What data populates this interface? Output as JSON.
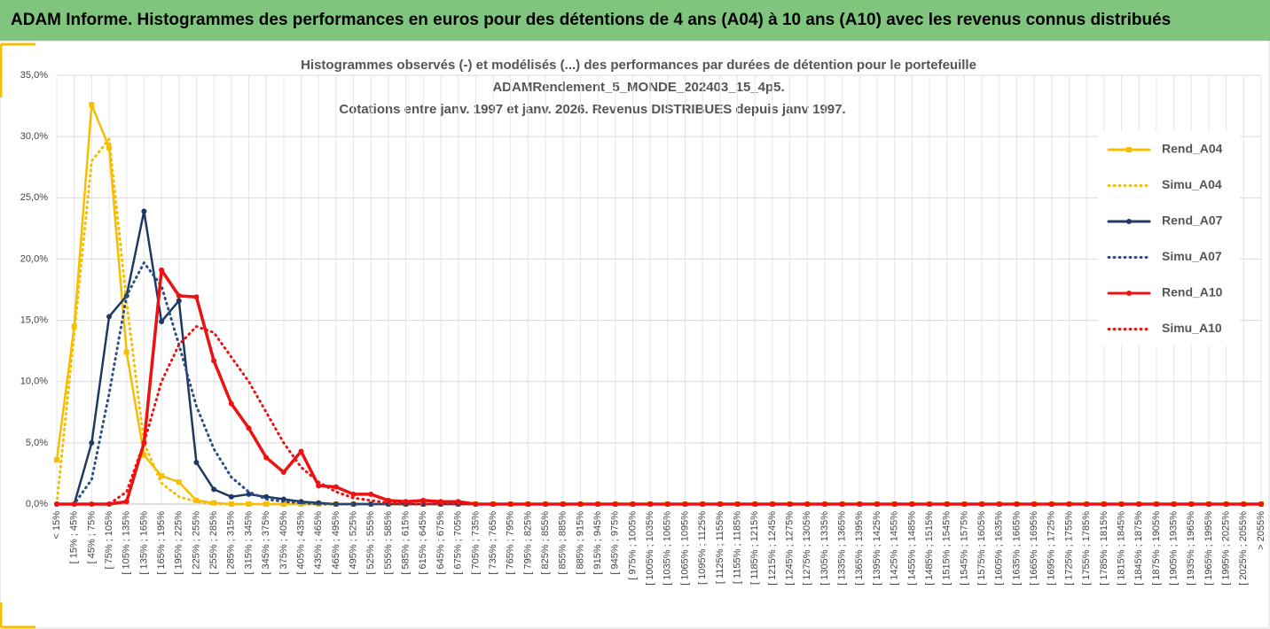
{
  "header": {
    "title": "ADAM Informe. Histogrammes des performances en euros pour des détentions de 4 ans (A04) à 10 ans (A10) avec les revenus connus distribués"
  },
  "chart_data": {
    "type": "line",
    "title": [
      "Histogrammes observés (-) et modélisés (...) des performances par durées de détention pour le portefeuille",
      "ADAMRendement_5_MONDE_202403_15_4p5.",
      "Cotations entre janv. 1997 et janv. 2026. Revenus DISTRIBUES depuis janv 1997."
    ],
    "categories": [
      "< 15%",
      "[ 15% ; 45%",
      "[ 45% ; 75%",
      "[ 75% ; 105%",
      "[ 105% ; 135%",
      "[ 135% ; 165%",
      "[ 165% ; 195%",
      "[ 195% ; 225%",
      "[ 225% ; 255%",
      "[ 255% ; 285%",
      "[ 285% ; 315%",
      "[ 315% ; 345%",
      "[ 345% ; 375%",
      "[ 375% ; 405%",
      "[ 405% ; 435%",
      "[ 435% ; 465%",
      "[ 465% ; 495%",
      "[ 495% ; 525%",
      "[ 525% ; 555%",
      "[ 555% ; 585%",
      "[ 585% ; 615%",
      "[ 615% ; 645%",
      "[ 645% ; 675%",
      "[ 675% ; 705%",
      "[ 705% ; 735%",
      "[ 735% ; 765%",
      "[ 765% ; 795%",
      "[ 795% ; 825%",
      "[ 825% ; 855%",
      "[ 855% ; 885%",
      "[ 885% ; 915%",
      "[ 915% ; 945%",
      "[ 945% ; 975%",
      "[ 975% ; 1005%",
      "[ 1005% ; 1035%",
      "[ 1035% ; 1065%",
      "[ 1065% ; 1095%",
      "[ 1095% ; 1125%",
      "[ 1125% ; 1155%",
      "[ 1155% ; 1185%",
      "[ 1185% ; 1215%",
      "[ 1215% ; 1245%",
      "[ 1245% ; 1275%",
      "[ 1275% ; 1305%",
      "[ 1305% ; 1335%",
      "[ 1335% ; 1365%",
      "[ 1365% ; 1395%",
      "[ 1395% ; 1425%",
      "[ 1425% ; 1455%",
      "[ 1455% ; 1485%",
      "[ 1485% ; 1515%",
      "[ 1515% ; 1545%",
      "[ 1545% ; 1575%",
      "[ 1575% ; 1605%",
      "[ 1605% ; 1635%",
      "[ 1635% ; 1665%",
      "[ 1665% ; 1695%",
      "[ 1695% ; 1725%",
      "[ 1725% ; 1755%",
      "[ 1755% ; 1785%",
      "[ 1785% ; 1815%",
      "[ 1815% ; 1845%",
      "[ 1845% ; 1875%",
      "[ 1875% ; 1905%",
      "[ 1905% ; 1935%",
      "[ 1935% ; 1965%",
      "[ 1965% ; 1995%",
      "[ 1995% ; 2025%",
      "[ 2025% ; 2055%",
      "> 2055%"
    ],
    "series": [
      {
        "name": "Rend_A04",
        "color": "#f5be00",
        "style": "solid",
        "marker": "square",
        "values": [
          3.6,
          14.5,
          32.6,
          29.1,
          12.4,
          4.0,
          2.3,
          1.8,
          0.3,
          0.1,
          0,
          0,
          0,
          0,
          0,
          0,
          0,
          0,
          0,
          0,
          0,
          0,
          0,
          0,
          0,
          0,
          0,
          0,
          0,
          0,
          0,
          0,
          0,
          0,
          0,
          0,
          0,
          0,
          0,
          0,
          0,
          0,
          0,
          0,
          0,
          0,
          0,
          0,
          0,
          0,
          0,
          0,
          0,
          0,
          0,
          0,
          0,
          0,
          0,
          0,
          0,
          0,
          0,
          0,
          0,
          0,
          0,
          0,
          0,
          0
        ]
      },
      {
        "name": "Simu_A04",
        "color": "#f5be00",
        "style": "dotted",
        "values": [
          0,
          14,
          28,
          29.8,
          16.5,
          5,
          1.7,
          0.6,
          0.2,
          0,
          0,
          0,
          0,
          0,
          0,
          0,
          0,
          0,
          0,
          0,
          0,
          0,
          0,
          0,
          0,
          0,
          0,
          0,
          0,
          0,
          0,
          0,
          0,
          0,
          0,
          0,
          0,
          0,
          0,
          0,
          0,
          0,
          0,
          0,
          0,
          0,
          0,
          0,
          0,
          0,
          0,
          0,
          0,
          0,
          0,
          0,
          0,
          0,
          0,
          0,
          0,
          0,
          0,
          0,
          0,
          0,
          0,
          0,
          0,
          0
        ]
      },
      {
        "name": "Rend_A07",
        "color": "#1f3864",
        "style": "solid",
        "marker": "circle",
        "values": [
          0,
          0,
          5,
          15.3,
          17,
          23.9,
          14.9,
          16.6,
          3.4,
          1.2,
          0.6,
          0.8,
          0.6,
          0.4,
          0.2,
          0.1,
          0,
          0,
          0,
          0,
          0,
          0,
          0,
          0,
          0,
          0,
          0,
          0,
          0,
          0,
          0,
          0,
          0,
          0,
          0,
          0,
          0,
          0,
          0,
          0,
          0,
          0,
          0,
          0,
          0,
          0,
          0,
          0,
          0,
          0,
          0,
          0,
          0,
          0,
          0,
          0,
          0,
          0,
          0,
          0,
          0,
          0,
          0,
          0,
          0,
          0,
          0,
          0,
          0,
          0
        ]
      },
      {
        "name": "Simu_A07",
        "color": "#2e4d87",
        "style": "dotted",
        "values": [
          0,
          0,
          2,
          9,
          17,
          19.7,
          17.8,
          13,
          8,
          4.5,
          2.2,
          1,
          0.4,
          0.2,
          0.1,
          0,
          0,
          0,
          0,
          0,
          0,
          0,
          0,
          0,
          0,
          0,
          0,
          0,
          0,
          0,
          0,
          0,
          0,
          0,
          0,
          0,
          0,
          0,
          0,
          0,
          0,
          0,
          0,
          0,
          0,
          0,
          0,
          0,
          0,
          0,
          0,
          0,
          0,
          0,
          0,
          0,
          0,
          0,
          0,
          0,
          0,
          0,
          0,
          0,
          0,
          0,
          0,
          0,
          0,
          0
        ]
      },
      {
        "name": "Rend_A10",
        "color": "#ee1111",
        "style": "solid",
        "marker": "circle",
        "values": [
          0,
          0,
          0,
          0,
          0.2,
          5,
          19.1,
          17,
          16.9,
          11.7,
          8.2,
          6.2,
          3.8,
          2.6,
          4.3,
          1.5,
          1.4,
          0.8,
          0.8,
          0.3,
          0.2,
          0.3,
          0.2,
          0.2,
          0,
          0,
          0,
          0,
          0,
          0,
          0,
          0,
          0,
          0,
          0,
          0,
          0,
          0,
          0,
          0,
          0,
          0,
          0,
          0,
          0,
          0,
          0,
          0,
          0,
          0,
          0,
          0,
          0,
          0,
          0,
          0,
          0,
          0,
          0,
          0,
          0,
          0,
          0,
          0,
          0,
          0,
          0,
          0,
          0,
          0
        ]
      },
      {
        "name": "Simu_A10",
        "color": "#ee1111",
        "style": "dotted",
        "values": [
          0,
          0,
          0,
          0,
          1,
          5,
          10,
          13,
          14.5,
          14,
          12,
          10,
          7.5,
          5,
          3,
          1.8,
          1,
          0.5,
          0.3,
          0.1,
          0,
          0,
          0,
          0,
          0,
          0,
          0,
          0,
          0,
          0,
          0,
          0,
          0,
          0,
          0,
          0,
          0,
          0,
          0,
          0,
          0,
          0,
          0,
          0,
          0,
          0,
          0,
          0,
          0,
          0,
          0,
          0,
          0,
          0,
          0,
          0,
          0,
          0,
          0,
          0,
          0,
          0,
          0,
          0,
          0,
          0,
          0,
          0,
          0,
          0
        ]
      }
    ],
    "ylim": [
      0,
      35
    ],
    "yticks": [
      {
        "value": 0,
        "label": "0,0%"
      },
      {
        "value": 5,
        "label": "5,0%"
      },
      {
        "value": 10,
        "label": "10,0%"
      },
      {
        "value": 15,
        "label": "15,0%"
      },
      {
        "value": 20,
        "label": "20,0%"
      },
      {
        "value": 25,
        "label": "25,0%"
      },
      {
        "value": 30,
        "label": "30,0%"
      },
      {
        "value": 35,
        "label": "35,0%"
      }
    ],
    "grid": true,
    "legend": "right"
  }
}
